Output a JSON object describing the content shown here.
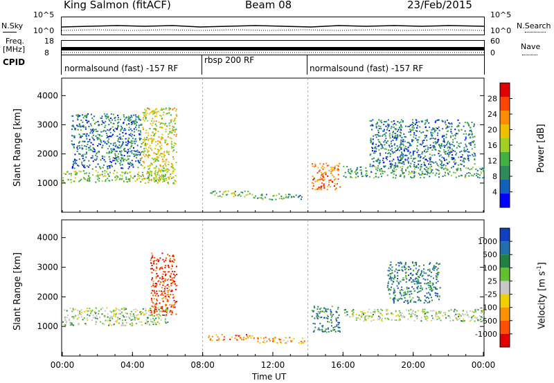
{
  "header": {
    "station": "King Salmon (fitACF)",
    "beam": "Beam 08",
    "date": "23/Feb/2015"
  },
  "noise_panel": {
    "left_label": "N.Sky",
    "right_label": "N.Search",
    "left_ticks": [
      "10^5",
      "10^0"
    ],
    "right_ticks": [
      "10^5",
      "10^0"
    ]
  },
  "freq_panel": {
    "left_label_line1": "Freq.",
    "left_label_line2": "[MHz]",
    "right_label": "Nave",
    "left_ticks": [
      "18",
      "8"
    ],
    "right_ticks": [
      "60",
      "0"
    ]
  },
  "cpid": {
    "label": "CPID",
    "segments": [
      {
        "text": "normalsound (fast) -157 RF",
        "start_hour": 0
      },
      {
        "text": "rbsp 200 RF",
        "start_hour": 8
      },
      {
        "text": "normalsound (fast) -157 RF",
        "start_hour": 14
      }
    ]
  },
  "x_axis": {
    "label": "Time UT",
    "ticks": [
      "00:00",
      "04:00",
      "08:00",
      "12:00",
      "16:00",
      "20:00",
      "00:00"
    ]
  },
  "chart_data": [
    {
      "type": "heatmap",
      "name": "power",
      "ylabel": "Slant Range [km]",
      "xlim": [
        0,
        24
      ],
      "ylim": [
        0,
        4600
      ],
      "yticks": [
        1000,
        2000,
        3000,
        4000
      ],
      "colorbar_label": "Power [dB]",
      "colorbar_ticks": [
        "28",
        "24",
        "20",
        "16",
        "12",
        "8",
        "4"
      ],
      "colorbar_colors": [
        "#e00000",
        "#ff4500",
        "#ff8c00",
        "#f0c000",
        "#a0d020",
        "#40b040",
        "#2e8b57",
        "#1060c0",
        "#0000ff"
      ],
      "regions": [
        {
          "t0": 0.0,
          "t1": 6.0,
          "r0": 1050,
          "r1": 1450,
          "level": 5
        },
        {
          "t0": 0.5,
          "t1": 4.5,
          "r0": 1500,
          "r1": 3400,
          "level": 7
        },
        {
          "t0": 4.5,
          "t1": 6.5,
          "r0": 1000,
          "r1": 3600,
          "level": 4
        },
        {
          "t0": 8.3,
          "t1": 10.8,
          "r0": 550,
          "r1": 750,
          "level": 5
        },
        {
          "t0": 10.8,
          "t1": 13.8,
          "r0": 450,
          "r1": 650,
          "level": 6
        },
        {
          "t0": 14.2,
          "t1": 15.8,
          "r0": 800,
          "r1": 1700,
          "level": 2
        },
        {
          "t0": 16.0,
          "t1": 24.0,
          "r0": 1200,
          "r1": 1600,
          "level": 6
        },
        {
          "t0": 17.5,
          "t1": 23.5,
          "r0": 1600,
          "r1": 3200,
          "level": 7
        }
      ]
    },
    {
      "type": "heatmap",
      "name": "velocity",
      "ylabel": "Slant Range [km]",
      "xlim": [
        0,
        24
      ],
      "ylim": [
        0,
        4600
      ],
      "yticks": [
        1000,
        2000,
        3000,
        4000
      ],
      "colorbar_label": "Velocity [m s^-1]",
      "colorbar_ticks": [
        "1000",
        "500",
        "100",
        "25",
        "-25",
        "-100",
        "-500",
        "-1000"
      ],
      "colorbar_colors": [
        "#1040c0",
        "#2070b0",
        "#208040",
        "#60c030",
        "#c8c8c8",
        "#f0d000",
        "#ff9000",
        "#ff5000",
        "#e00000"
      ],
      "regions": [
        {
          "t0": 0.0,
          "t1": 6.0,
          "r0": 1050,
          "r1": 1650,
          "level": 4
        },
        {
          "t0": 5.0,
          "t1": 6.5,
          "r0": 1400,
          "r1": 3500,
          "level": 8
        },
        {
          "t0": 8.3,
          "t1": 10.8,
          "r0": 550,
          "r1": 750,
          "level": 7
        },
        {
          "t0": 10.8,
          "t1": 13.8,
          "r0": 450,
          "r1": 650,
          "level": 6
        },
        {
          "t0": 14.2,
          "t1": 15.8,
          "r0": 800,
          "r1": 1700,
          "level": 2
        },
        {
          "t0": 16.0,
          "t1": 24.0,
          "r0": 1200,
          "r1": 1600,
          "level": 4
        },
        {
          "t0": 18.5,
          "t1": 21.5,
          "r0": 1800,
          "r1": 3200,
          "level": 2
        }
      ]
    }
  ]
}
